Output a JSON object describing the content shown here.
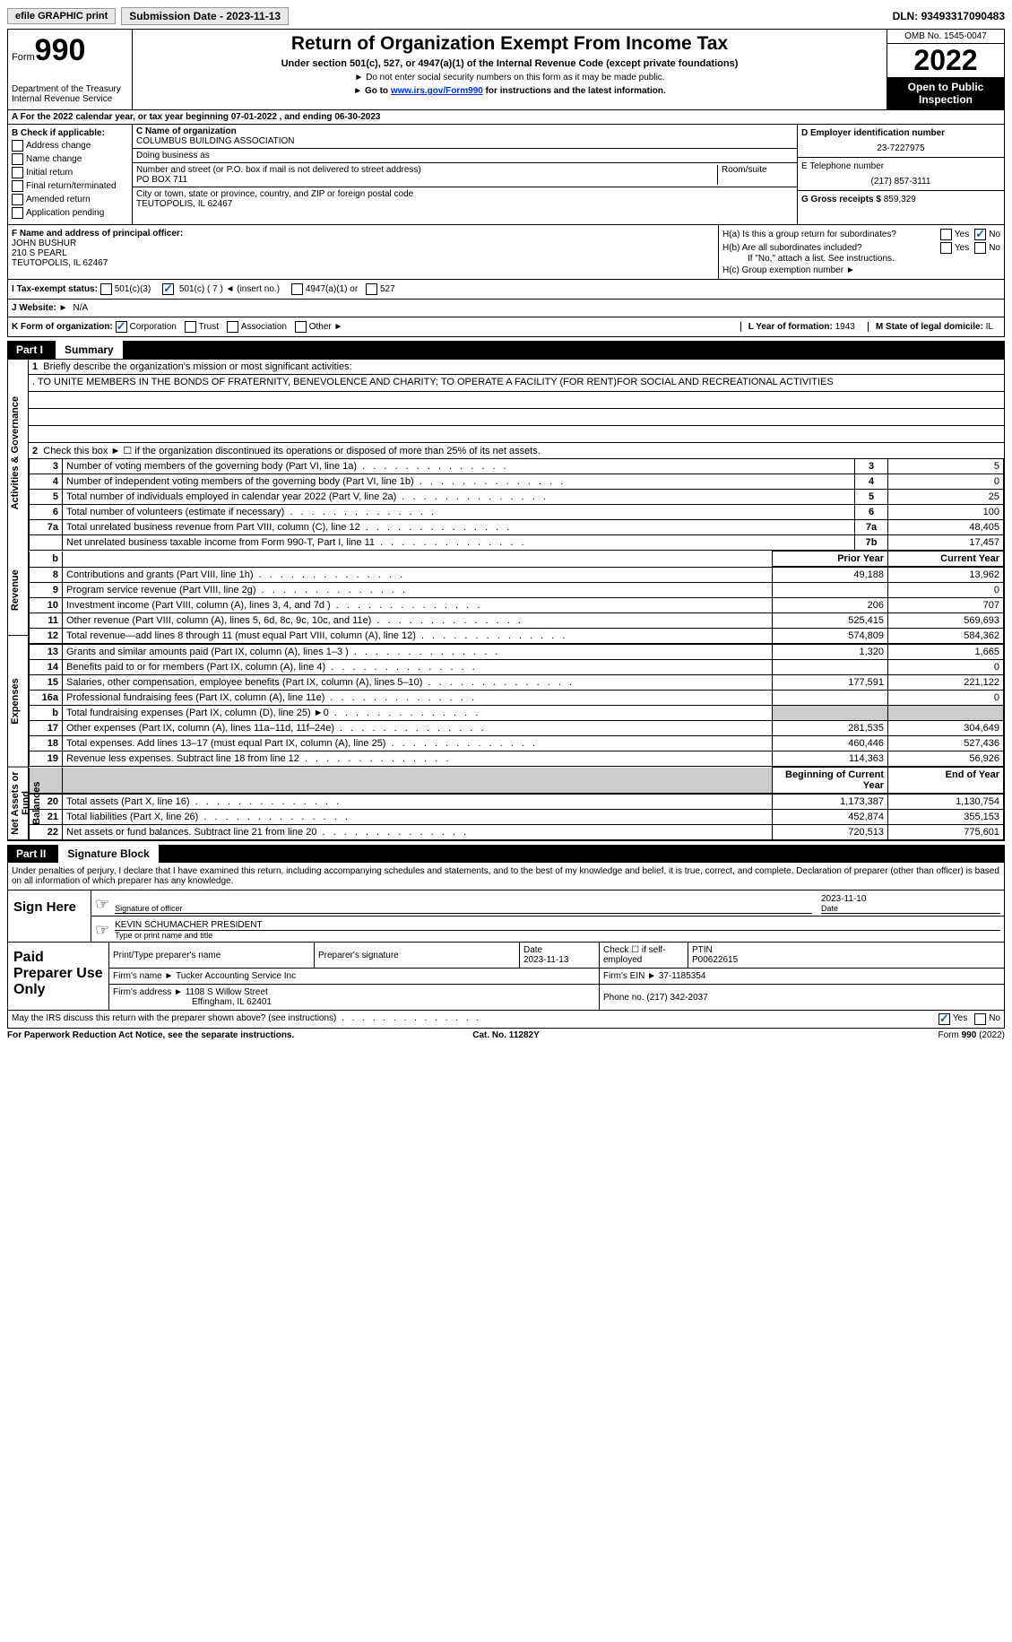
{
  "top": {
    "efile": "efile GRAPHIC print",
    "sub_date_label": "Submission Date - ",
    "sub_date": "2023-11-13",
    "dln_label": "DLN: ",
    "dln": "93493317090483"
  },
  "header": {
    "form_word": "Form",
    "form_num": "990",
    "dept": "Department of the Treasury\nInternal Revenue Service",
    "title": "Return of Organization Exempt From Income Tax",
    "sub1": "Under section 501(c), 527, or 4947(a)(1) of the Internal Revenue Code (except private foundations)",
    "sub2": "Do not enter social security numbers on this form as it may be made public.",
    "sub3_pre": "Go to ",
    "sub3_link": "www.irs.gov/Form990",
    "sub3_post": " for instructions and the latest information.",
    "omb": "OMB No. 1545-0047",
    "year": "2022",
    "inspection": "Open to Public Inspection"
  },
  "row_a": "A For the 2022 calendar year, or tax year beginning 07-01-2022    , and ending 06-30-2023",
  "box_b": {
    "label": "B Check if applicable:",
    "items": [
      "Address change",
      "Name change",
      "Initial return",
      "Final return/terminated",
      "Amended return",
      "Application pending"
    ]
  },
  "box_c": {
    "name_label": "C Name of organization",
    "name": "COLUMBUS BUILDING ASSOCIATION",
    "dba_label": "Doing business as",
    "dba": "",
    "street_label": "Number and street (or P.O. box if mail is not delivered to street address)",
    "street": "PO BOX 711",
    "room_label": "Room/suite",
    "room": "",
    "city_label": "City or town, state or province, country, and ZIP or foreign postal code",
    "city": "TEUTOPOLIS, IL  62467"
  },
  "box_d": {
    "ein_label": "D Employer identification number",
    "ein": "23-7227975",
    "phone_label": "E Telephone number",
    "phone": "(217) 857-3111",
    "gross_label": "G Gross receipts $ ",
    "gross": "859,329"
  },
  "box_f": {
    "label": "F  Name and address of principal officer:",
    "name": "JOHN BUSHUR",
    "addr1": "210 S PEARL",
    "addr2": "TEUTOPOLIS, IL  62467"
  },
  "box_h": {
    "ha": "H(a)  Is this a group return for subordinates?",
    "hb": "H(b)  Are all subordinates included?",
    "hb_note": "If \"No,\" attach a list. See instructions.",
    "hc": "H(c)  Group exemption number ►",
    "yes": "Yes",
    "no": "No"
  },
  "row_i": {
    "label": "I  Tax-exempt status:",
    "opt1": "501(c)(3)",
    "opt2_pre": "501(c) ( ",
    "opt2_num": "7",
    "opt2_post": " ) ◄ (insert no.)",
    "opt3": "4947(a)(1) or",
    "opt4": "527"
  },
  "row_j": {
    "label": "J  Website: ►",
    "val": "N/A"
  },
  "row_k": {
    "label": "K Form of organization:",
    "opts": [
      "Corporation",
      "Trust",
      "Association",
      "Other ►"
    ],
    "l_label": "L Year of formation: ",
    "l_val": "1943",
    "m_label": "M State of legal domicile: ",
    "m_val": "IL"
  },
  "part1": {
    "label": "Part I",
    "title": "Summary",
    "tab1": "Activities & Governance",
    "tab2": "Revenue",
    "tab3": "Expenses",
    "tab4": "Net Assets or Fund Balances",
    "q1": "Briefly describe the organization's mission or most significant activities:",
    "mission": ". TO UNITE MEMBERS IN THE BONDS OF FRATERNITY, BENEVOLENCE AND CHARITY; TO OPERATE A FACILITY (FOR RENT)FOR SOCIAL AND RECREATIONAL ACTIVITIES",
    "q2": "Check this box ► ☐ if the organization discontinued its operations or disposed of more than 25% of its net assets.",
    "lines_gov": [
      {
        "n": "3",
        "t": "Number of voting members of the governing body (Part VI, line 1a)",
        "box": "3",
        "v": "5"
      },
      {
        "n": "4",
        "t": "Number of independent voting members of the governing body (Part VI, line 1b)",
        "box": "4",
        "v": "0"
      },
      {
        "n": "5",
        "t": "Total number of individuals employed in calendar year 2022 (Part V, line 2a)",
        "box": "5",
        "v": "25"
      },
      {
        "n": "6",
        "t": "Total number of volunteers (estimate if necessary)",
        "box": "6",
        "v": "100"
      },
      {
        "n": "7a",
        "t": "Total unrelated business revenue from Part VIII, column (C), line 12",
        "box": "7a",
        "v": "48,405"
      },
      {
        "n": "",
        "t": "Net unrelated business taxable income from Form 990-T, Part I, line 11",
        "box": "7b",
        "v": "17,457"
      }
    ],
    "hdr_prior": "Prior Year",
    "hdr_current": "Current Year",
    "lines_rev": [
      {
        "n": "8",
        "t": "Contributions and grants (Part VIII, line 1h)",
        "p": "49,188",
        "c": "13,962"
      },
      {
        "n": "9",
        "t": "Program service revenue (Part VIII, line 2g)",
        "p": "",
        "c": "0"
      },
      {
        "n": "10",
        "t": "Investment income (Part VIII, column (A), lines 3, 4, and 7d )",
        "p": "206",
        "c": "707"
      },
      {
        "n": "11",
        "t": "Other revenue (Part VIII, column (A), lines 5, 6d, 8c, 9c, 10c, and 11e)",
        "p": "525,415",
        "c": "569,693"
      },
      {
        "n": "12",
        "t": "Total revenue—add lines 8 through 11 (must equal Part VIII, column (A), line 12)",
        "p": "574,809",
        "c": "584,362"
      }
    ],
    "lines_exp": [
      {
        "n": "13",
        "t": "Grants and similar amounts paid (Part IX, column (A), lines 1–3 )",
        "p": "1,320",
        "c": "1,665"
      },
      {
        "n": "14",
        "t": "Benefits paid to or for members (Part IX, column (A), line 4)",
        "p": "",
        "c": "0"
      },
      {
        "n": "15",
        "t": "Salaries, other compensation, employee benefits (Part IX, column (A), lines 5–10)",
        "p": "177,591",
        "c": "221,122"
      },
      {
        "n": "16a",
        "t": "Professional fundraising fees (Part IX, column (A), line 11e)",
        "p": "",
        "c": "0"
      },
      {
        "n": "b",
        "t": "Total fundraising expenses (Part IX, column (D), line 25) ►0",
        "p": "GRAY",
        "c": "GRAY"
      },
      {
        "n": "17",
        "t": "Other expenses (Part IX, column (A), lines 11a–11d, 11f–24e)",
        "p": "281,535",
        "c": "304,649"
      },
      {
        "n": "18",
        "t": "Total expenses. Add lines 13–17 (must equal Part IX, column (A), line 25)",
        "p": "460,446",
        "c": "527,436"
      },
      {
        "n": "19",
        "t": "Revenue less expenses. Subtract line 18 from line 12",
        "p": "114,363",
        "c": "56,926"
      }
    ],
    "hdr_begin": "Beginning of Current Year",
    "hdr_end": "End of Year",
    "lines_net": [
      {
        "n": "20",
        "t": "Total assets (Part X, line 16)",
        "p": "1,173,387",
        "c": "1,130,754"
      },
      {
        "n": "21",
        "t": "Total liabilities (Part X, line 26)",
        "p": "452,874",
        "c": "355,153"
      },
      {
        "n": "22",
        "t": "Net assets or fund balances. Subtract line 21 from line 20",
        "p": "720,513",
        "c": "775,601"
      }
    ]
  },
  "part2": {
    "label": "Part II",
    "title": "Signature Block",
    "penalties": "Under penalties of perjury, I declare that I have examined this return, including accompanying schedules and statements, and to the best of my knowledge and belief, it is true, correct, and complete. Declaration of preparer (other than officer) is based on all information of which preparer has any knowledge.",
    "sign_here": "Sign Here",
    "sig_officer": "Signature of officer",
    "sig_date": "2023-11-10",
    "sig_date_label": "Date",
    "officer_name": "KEVIN SCHUMACHER PRESIDENT",
    "officer_label": "Type or print name and title",
    "paid": "Paid Preparer Use Only",
    "prep_name_label": "Print/Type preparer's name",
    "prep_sig_label": "Preparer's signature",
    "prep_date_label": "Date",
    "prep_date": "2023-11-13",
    "self_emp": "Check ☐ if self-employed",
    "ptin_label": "PTIN",
    "ptin": "P00622615",
    "firm_name_label": "Firm's name    ►",
    "firm_name": "Tucker Accounting Service Inc",
    "firm_ein_label": "Firm's EIN ►",
    "firm_ein": "37-1185354",
    "firm_addr_label": "Firm's address ►",
    "firm_addr1": "1108 S Willow Street",
    "firm_addr2": "Effingham, IL  62401",
    "firm_phone_label": "Phone no. ",
    "firm_phone": "(217) 342-2037",
    "discuss": "May the IRS discuss this return with the preparer shown above? (see instructions)",
    "yes": "Yes",
    "no": "No"
  },
  "footer": {
    "left": "For Paperwork Reduction Act Notice, see the separate instructions.",
    "mid": "Cat. No. 11282Y",
    "right": "Form 990 (2022)"
  }
}
